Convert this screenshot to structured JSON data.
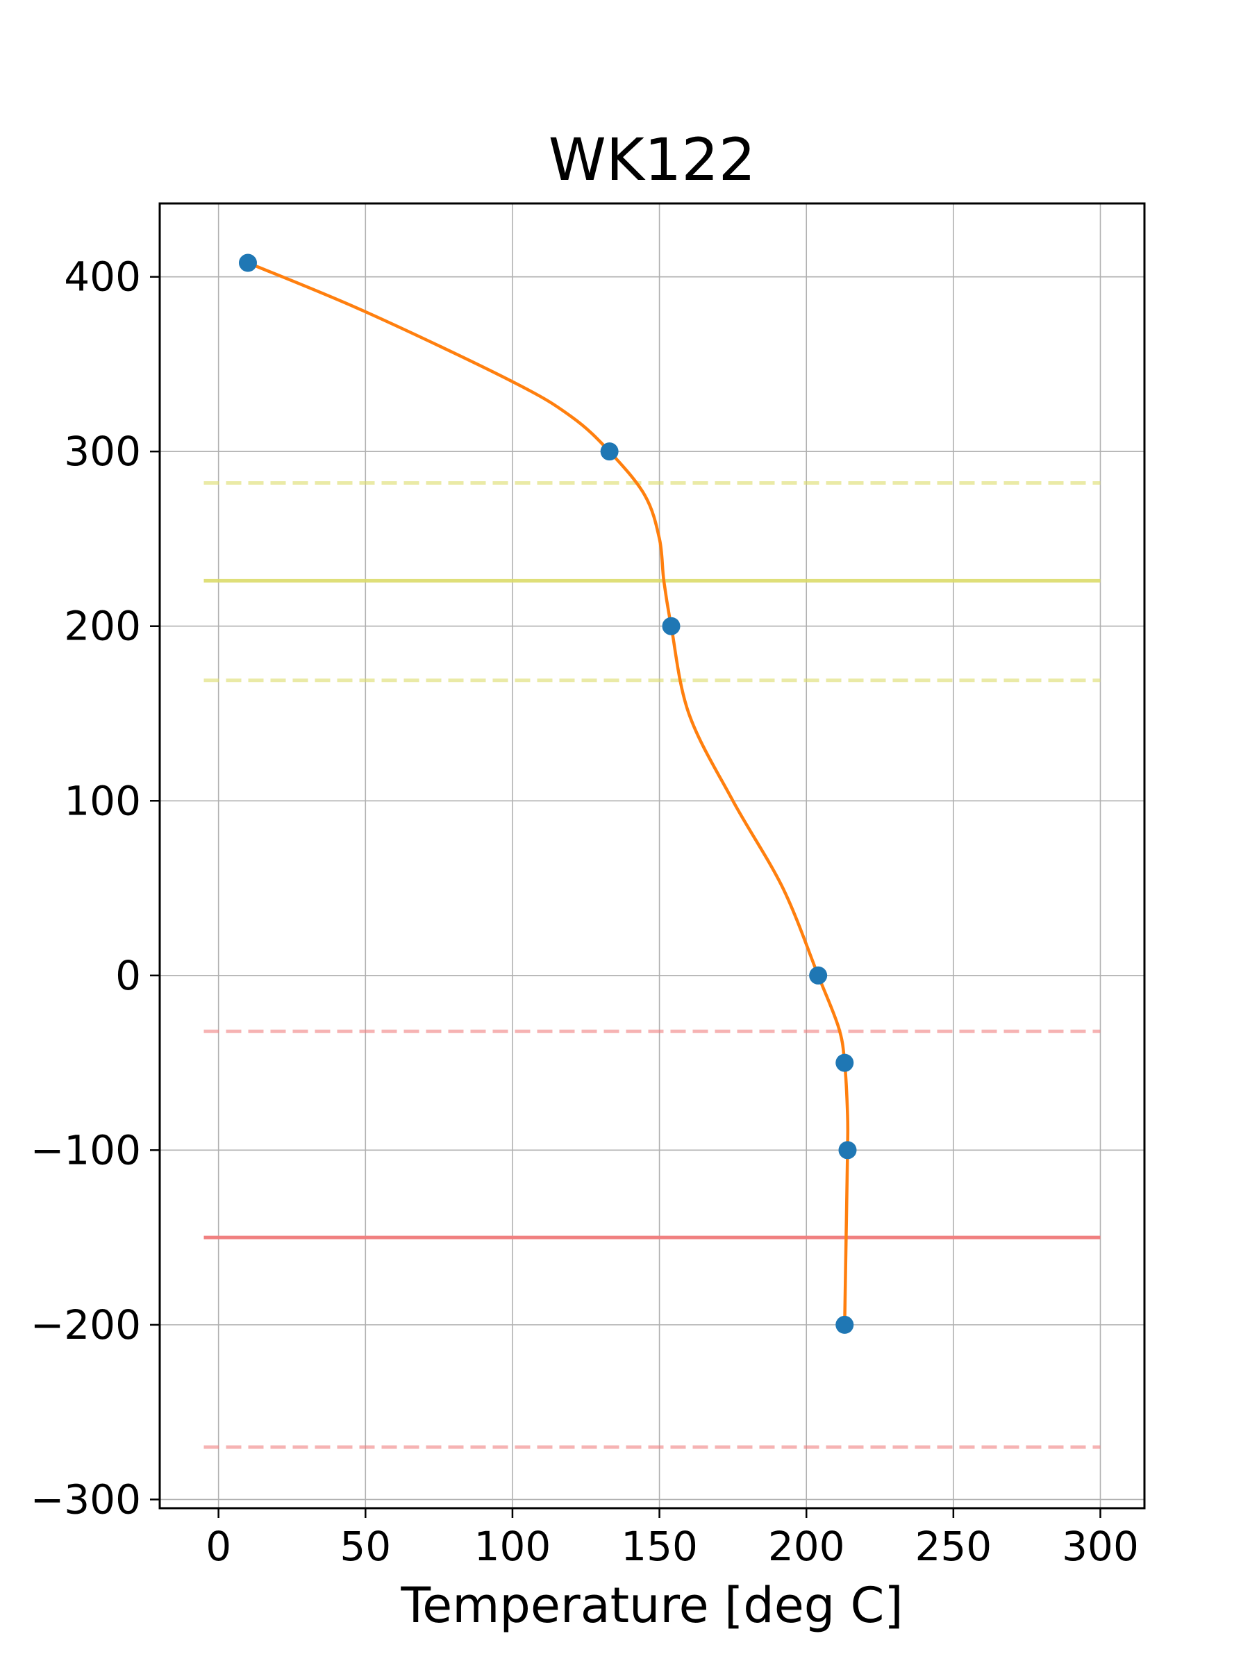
{
  "chart_data": {
    "type": "line",
    "title": "WK122",
    "xlabel": "Temperature [deg C]",
    "ylabel": "",
    "xlim": [
      -20,
      315
    ],
    "ylim": [
      -305,
      442
    ],
    "xticks": [
      0,
      50,
      100,
      150,
      200,
      250,
      300
    ],
    "yticks": [
      -300,
      -200,
      -100,
      0,
      100,
      200,
      300,
      400
    ],
    "grid": true,
    "legend": "none",
    "colors": {
      "points": "#1f77b4",
      "curve": "#ff7f0e",
      "yellow": "#dcdc6a",
      "red": "#f08080"
    },
    "series": [
      {
        "kind": "scatter",
        "color": "#1f77b4",
        "points": [
          {
            "x": 10,
            "y": 408
          },
          {
            "x": 133,
            "y": 300
          },
          {
            "x": 154,
            "y": 200
          },
          {
            "x": 204,
            "y": 0
          },
          {
            "x": 213,
            "y": -50
          },
          {
            "x": 214,
            "y": -100
          },
          {
            "x": 213,
            "y": -200
          }
        ]
      },
      {
        "kind": "line",
        "color": "#ff7f0e",
        "points": [
          {
            "x": 10,
            "y": 408
          },
          {
            "x": 50,
            "y": 380
          },
          {
            "x": 100,
            "y": 340
          },
          {
            "x": 120,
            "y": 320
          },
          {
            "x": 133,
            "y": 300
          },
          {
            "x": 145,
            "y": 275
          },
          {
            "x": 150,
            "y": 250
          },
          {
            "x": 151.5,
            "y": 226
          },
          {
            "x": 154,
            "y": 200
          },
          {
            "x": 160,
            "y": 150
          },
          {
            "x": 175,
            "y": 100
          },
          {
            "x": 192,
            "y": 50
          },
          {
            "x": 204,
            "y": 0
          },
          {
            "x": 211,
            "y": -30
          },
          {
            "x": 213,
            "y": -50
          },
          {
            "x": 214,
            "y": -80
          },
          {
            "x": 214,
            "y": -100
          },
          {
            "x": 213.5,
            "y": -150
          },
          {
            "x": 213,
            "y": -200
          }
        ]
      }
    ],
    "reference_lines": [
      {
        "y": 282,
        "color": "#dcdc6a",
        "style": "dashed",
        "opacity": 0.6
      },
      {
        "y": 226,
        "color": "#dcdc6a",
        "style": "solid",
        "opacity": 0.9
      },
      {
        "y": 169,
        "color": "#dcdc6a",
        "style": "dashed",
        "opacity": 0.6
      },
      {
        "y": -32,
        "color": "#f08080",
        "style": "dashed",
        "opacity": 0.6
      },
      {
        "y": -150,
        "color": "#f08080",
        "style": "solid",
        "opacity": 1.0
      },
      {
        "y": -270,
        "color": "#f08080",
        "style": "dashed",
        "opacity": 0.6
      }
    ],
    "reference_x_span": [
      -5,
      300
    ]
  }
}
